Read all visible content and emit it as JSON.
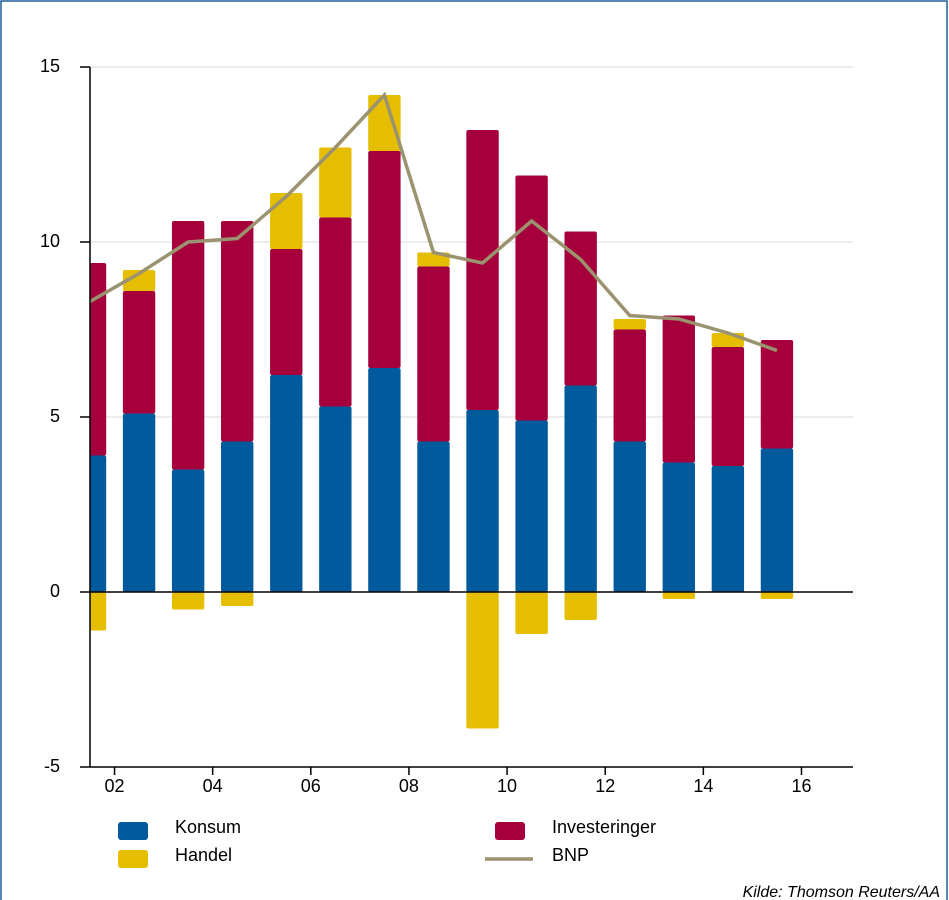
{
  "chart_data": {
    "type": "bar",
    "x": [
      2001,
      2002,
      2003,
      2004,
      2005,
      2006,
      2007,
      2008,
      2009,
      2010,
      2011,
      2012,
      2013,
      2014,
      2015
    ],
    "series": [
      {
        "name": "Konsum",
        "color": "#005a9c",
        "values": [
          3.9,
          5.1,
          3.5,
          4.3,
          6.2,
          5.3,
          6.4,
          4.3,
          5.2,
          4.9,
          5.9,
          4.3,
          3.7,
          3.6,
          4.1
        ]
      },
      {
        "name": "Investeringer",
        "color": "#a6003c",
        "values": [
          5.5,
          3.5,
          7.1,
          6.3,
          3.6,
          5.4,
          6.2,
          5.0,
          8.0,
          7.0,
          4.4,
          3.2,
          4.2,
          3.4,
          3.1
        ]
      },
      {
        "name": "Handel",
        "color": "#e6be00",
        "values": [
          -1.1,
          0.6,
          -0.5,
          -0.4,
          1.6,
          2.0,
          1.6,
          0.4,
          -3.9,
          -1.2,
          -0.8,
          0.3,
          -0.2,
          0.4,
          -0.2
        ]
      },
      {
        "name": "BNP",
        "type": "line",
        "color": "#9b9270",
        "values": [
          8.3,
          9.1,
          10.0,
          10.1,
          11.3,
          12.7,
          14.2,
          9.7,
          9.4,
          10.6,
          9.5,
          7.9,
          7.8,
          7.4,
          6.9
        ]
      }
    ],
    "xlim": [
      2001.5,
      2017.05
    ],
    "xticks": [
      {
        "value": 2002,
        "label": "02"
      },
      {
        "value": 2004,
        "label": "04"
      },
      {
        "value": 2006,
        "label": "06"
      },
      {
        "value": 2008,
        "label": "08"
      },
      {
        "value": 2010,
        "label": "10"
      },
      {
        "value": 2012,
        "label": "12"
      },
      {
        "value": 2014,
        "label": "14"
      },
      {
        "value": 2016,
        "label": "16"
      }
    ],
    "ylim": [
      -5,
      15
    ],
    "yticks": [
      -5,
      0,
      5,
      10,
      15
    ],
    "grid": true,
    "source": "Kilde: Thomson Reuters/AA"
  }
}
